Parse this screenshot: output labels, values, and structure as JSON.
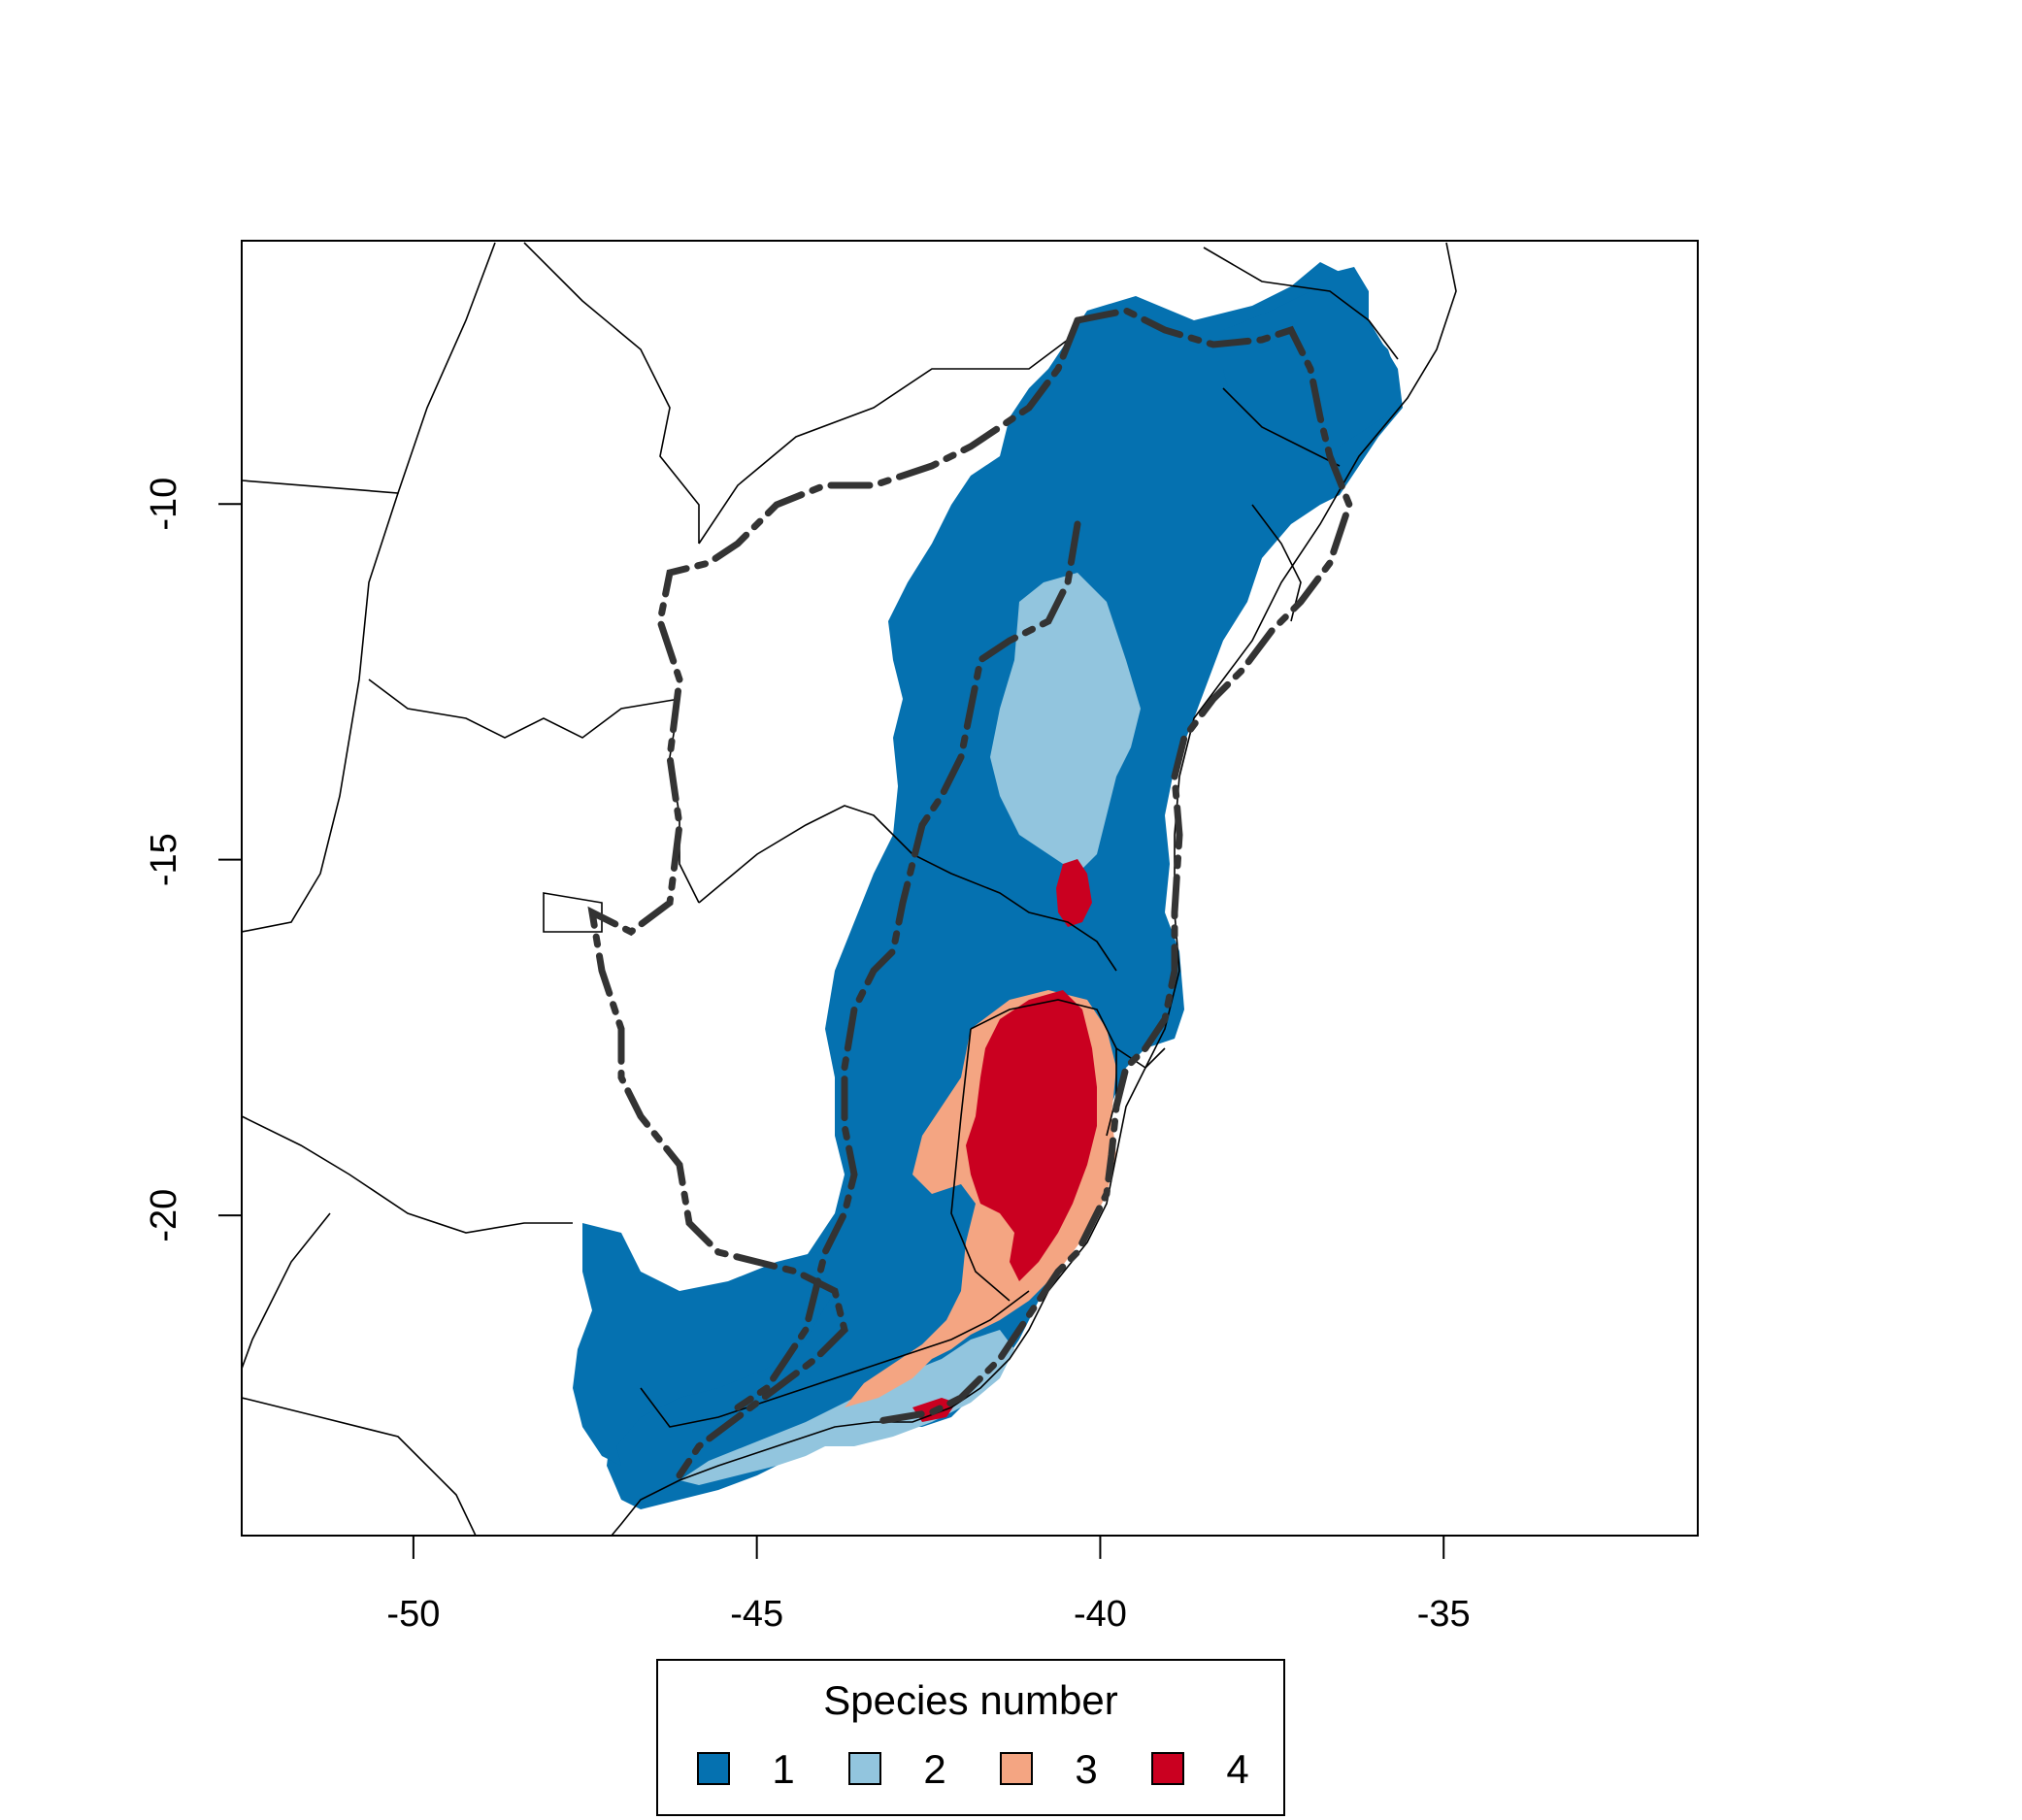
{
  "map": {
    "x_ticks": [
      "-50",
      "-45",
      "-40",
      "-35"
    ],
    "y_ticks": [
      "-10",
      "-15",
      "-20"
    ],
    "x_tick_values": [
      -50,
      -45,
      -40,
      -35
    ],
    "y_tick_values": [
      -10,
      -15,
      -20
    ],
    "xlim": [
      -52.5,
      -31.3
    ],
    "ylim": [
      -24.5,
      -6.3
    ]
  },
  "legend": {
    "title": "Species number",
    "items": [
      {
        "label": "1",
        "color": "#0571b0"
      },
      {
        "label": "2",
        "color": "#92c5de"
      },
      {
        "label": "3",
        "color": "#f4a582"
      },
      {
        "label": "4",
        "color": "#ca0020"
      }
    ]
  },
  "colors": {
    "species_1": "#0571b0",
    "species_2": "#92c5de",
    "species_3": "#f4a582",
    "species_4": "#ca0020",
    "state_borders": "#000000",
    "biome_boundary": "#333333"
  }
}
